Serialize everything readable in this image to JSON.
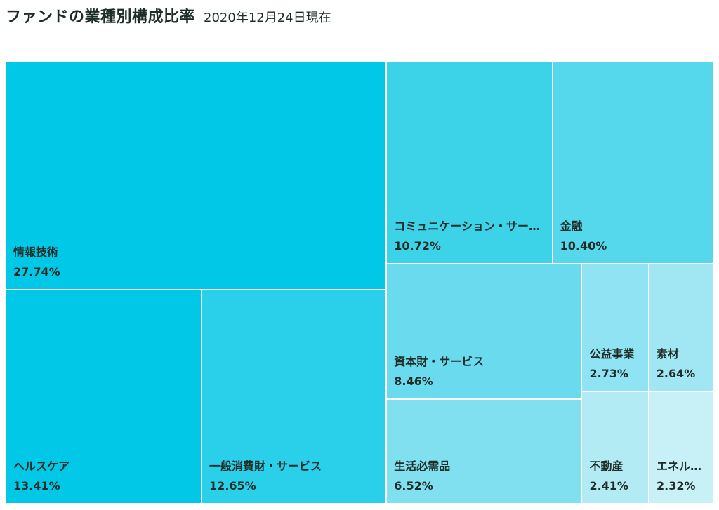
{
  "header": {
    "title": "ファンドの業種別構成比率",
    "subtitle": "2020年12月24日現在"
  },
  "chart_data": {
    "type": "treemap",
    "unit": "%",
    "items": [
      {
        "name": "情報技術",
        "value": 27.74,
        "label": "27.74%",
        "color": "#00c8e6"
      },
      {
        "name": "ヘルスケア",
        "value": 13.41,
        "label": "13.41%",
        "color": "#00c8e6"
      },
      {
        "name": "一般消費財・サービス",
        "value": 12.65,
        "label": "12.65%",
        "color": "#2ad0ea"
      },
      {
        "name": "コミュニケーション・サービス",
        "value": 10.72,
        "label": "10.72%",
        "color": "#3cd2e8"
      },
      {
        "name": "金融",
        "value": 10.4,
        "label": "10.40%",
        "color": "#55d8ec"
      },
      {
        "name": "資本財・サービス",
        "value": 8.46,
        "label": "8.46%",
        "color": "#6adbee"
      },
      {
        "name": "生活必需品",
        "value": 6.52,
        "label": "6.52%",
        "color": "#80e0f0"
      },
      {
        "name": "公益事業",
        "value": 2.73,
        "label": "2.73%",
        "color": "#8fe3f2"
      },
      {
        "name": "素材",
        "value": 2.64,
        "label": "2.64%",
        "color": "#a0e6f3"
      },
      {
        "name": "不動産",
        "value": 2.41,
        "label": "2.41%",
        "color": "#b3ebf5"
      },
      {
        "name": "エネルギー",
        "value": 2.32,
        "label": "2.32%",
        "color": "#c8f0f7"
      }
    ]
  }
}
